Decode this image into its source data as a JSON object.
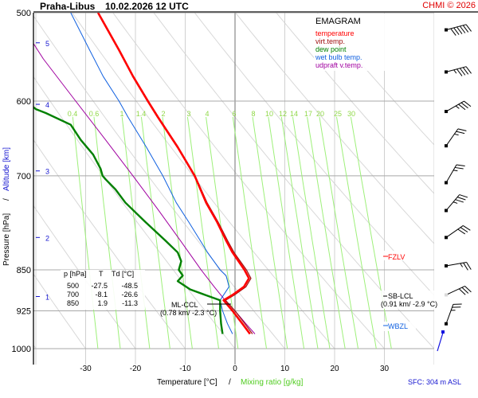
{
  "header": {
    "station": "Praha-Libus",
    "datetime": "10.02.2026 12 UTC",
    "copyright": "CHMI © 2026"
  },
  "legend": {
    "title": "EMAGRAM",
    "items": [
      {
        "label": "temperature",
        "color": "#ff0000"
      },
      {
        "label": "virt.temp.",
        "color": "#a01010"
      },
      {
        "label": "dew point",
        "color": "#008000"
      },
      {
        "label": "wet bulb temp.",
        "color": "#1060e0"
      },
      {
        "label": "udpraft v.temp.",
        "color": "#a000a0"
      }
    ]
  },
  "table": {
    "headers": [
      "p [hPa]",
      "T",
      "Td [°C]"
    ],
    "rows": [
      [
        "500",
        "-27.5",
        "-48.5"
      ],
      [
        "700",
        "-8.1",
        "-26.6"
      ],
      [
        "850",
        "1.9",
        "-11.3"
      ]
    ]
  },
  "annotations": {
    "ml_ccl": {
      "label": "ML-CCL",
      "detail": "(0.78 km/ -2.3 °C)",
      "pressure": 904
    },
    "sb_lcl": {
      "label": "SB-LCL",
      "detail": "(0.91 km/ -2.9 °C)",
      "pressure": 890
    },
    "fzlv": {
      "label": "FZLV",
      "pressure": 812,
      "color": "#ff0000"
    },
    "wbzl": {
      "label": "WBZL",
      "pressure": 947,
      "color": "#1060e0"
    },
    "surface": "SFC: 304 m ASL"
  },
  "chart_data": {
    "type": "line",
    "title": "Praha-Libus 10.02.2026 12 UTC",
    "diagram": "emagram",
    "xlabel": "Temperature [°C]",
    "xlabel2": "Mixing ratio [g/kg]",
    "ylabel": "Pressure [hPa]",
    "ylabel2": "Altitude [km]",
    "xlim": [
      -38,
      38
    ],
    "ylim": [
      1000,
      500
    ],
    "x_ticks": [
      -30,
      -20,
      -10,
      0,
      10,
      20,
      30
    ],
    "pressure_ticks": [
      500,
      600,
      700,
      850,
      925,
      1000
    ],
    "altitude_ticks": [
      {
        "km": 1,
        "p": 898
      },
      {
        "km": 2,
        "p": 795
      },
      {
        "km": 3,
        "p": 693
      },
      {
        "km": 4,
        "p": 604
      },
      {
        "km": 5,
        "p": 532
      }
    ],
    "mixing_ratio_labels": [
      "0.4",
      "0.6",
      "1",
      "1.4",
      "2",
      "3",
      "4",
      "6",
      "8",
      "10",
      "12",
      "14",
      "17",
      "20",
      "25",
      "30"
    ],
    "mixing_ratio_values": [
      0.4,
      0.6,
      1,
      1.4,
      2,
      3,
      4,
      6,
      8,
      10,
      12,
      14,
      17,
      20,
      25,
      30
    ],
    "series": [
      {
        "name": "temperature",
        "color": "#ff0000",
        "points": [
          [
            970,
            3.0
          ],
          [
            950,
            1.5
          ],
          [
            925,
            -0.5
          ],
          [
            905,
            -2.3
          ],
          [
            895,
            -0.5
          ],
          [
            880,
            1.8
          ],
          [
            865,
            2.8
          ],
          [
            850,
            1.9
          ],
          [
            820,
            -0.5
          ],
          [
            800,
            -1.8
          ],
          [
            770,
            -3.6
          ],
          [
            740,
            -5.8
          ],
          [
            700,
            -8.1
          ],
          [
            660,
            -11.5
          ],
          [
            620,
            -15.5
          ],
          [
            600,
            -17.5
          ],
          [
            570,
            -20.5
          ],
          [
            540,
            -23.3
          ],
          [
            500,
            -27.5
          ]
        ]
      },
      {
        "name": "virt.temp.",
        "color": "#a01010",
        "points": [
          [
            970,
            3.5
          ],
          [
            950,
            2.0
          ],
          [
            925,
            0.0
          ],
          [
            905,
            -1.9
          ],
          [
            895,
            -0.1
          ],
          [
            880,
            2.2
          ],
          [
            865,
            3.2
          ],
          [
            850,
            2.3
          ],
          [
            820,
            -0.2
          ],
          [
            800,
            -1.5
          ],
          [
            770,
            -3.4
          ],
          [
            740,
            -5.6
          ],
          [
            700,
            -8.0
          ],
          [
            660,
            -11.4
          ],
          [
            620,
            -15.4
          ],
          [
            600,
            -17.4
          ],
          [
            570,
            -20.4
          ],
          [
            540,
            -23.2
          ],
          [
            500,
            -27.5
          ]
        ]
      },
      {
        "name": "dew point",
        "color": "#008000",
        "points": [
          [
            970,
            -2.5
          ],
          [
            950,
            -2.8
          ],
          [
            925,
            -3.0
          ],
          [
            905,
            -3.0
          ],
          [
            895,
            -6.0
          ],
          [
            885,
            -9.0
          ],
          [
            870,
            -11.5
          ],
          [
            860,
            -10.5
          ],
          [
            850,
            -11.3
          ],
          [
            835,
            -10.8
          ],
          [
            820,
            -11.5
          ],
          [
            800,
            -14.0
          ],
          [
            770,
            -18.0
          ],
          [
            740,
            -22.0
          ],
          [
            720,
            -24.0
          ],
          [
            705,
            -26.0
          ],
          [
            700,
            -26.6
          ],
          [
            690,
            -27.0
          ],
          [
            670,
            -28.5
          ],
          [
            650,
            -31.0
          ],
          [
            630,
            -33.0
          ],
          [
            615,
            -38.0
          ],
          [
            610,
            -40.0
          ],
          [
            600,
            -42.0
          ]
        ]
      },
      {
        "name": "wet bulb temp.",
        "color": "#1060e0",
        "points": [
          [
            970,
            -0.5
          ],
          [
            950,
            -1.5
          ],
          [
            925,
            -2.5
          ],
          [
            905,
            -3.0
          ],
          [
            880,
            -1.2
          ],
          [
            860,
            -1.8
          ],
          [
            850,
            -3.0
          ],
          [
            820,
            -5.5
          ],
          [
            800,
            -7.0
          ],
          [
            770,
            -9.3
          ],
          [
            740,
            -11.8
          ],
          [
            700,
            -14.5
          ],
          [
            660,
            -17.8
          ],
          [
            620,
            -21.5
          ],
          [
            600,
            -23.3
          ],
          [
            570,
            -26.5
          ],
          [
            540,
            -29.2
          ],
          [
            500,
            -33.0
          ]
        ]
      },
      {
        "name": "udpraft v.temp.",
        "color": "#a000a0",
        "points": [
          [
            970,
            4.0
          ],
          [
            950,
            2.2
          ],
          [
            925,
            0.0
          ],
          [
            905,
            -2.0
          ],
          [
            880,
            -4.2
          ],
          [
            850,
            -6.8
          ],
          [
            800,
            -11.0
          ],
          [
            750,
            -15.5
          ],
          [
            700,
            -20.5
          ],
          [
            650,
            -26.0
          ],
          [
            600,
            -32.0
          ],
          [
            550,
            -38.5
          ],
          [
            520,
            -42.0
          ]
        ]
      }
    ],
    "wind_barbs": [
      {
        "p": 518,
        "dir": 255,
        "speed_kt": 60
      },
      {
        "p": 565,
        "dir": 255,
        "speed_kt": 45
      },
      {
        "p": 613,
        "dir": 240,
        "speed_kt": 35
      },
      {
        "p": 658,
        "dir": 215,
        "speed_kt": 25
      },
      {
        "p": 710,
        "dir": 210,
        "speed_kt": 25
      },
      {
        "p": 752,
        "dir": 220,
        "speed_kt": 35
      },
      {
        "p": 795,
        "dir": 235,
        "speed_kt": 30
      },
      {
        "p": 843,
        "dir": 260,
        "speed_kt": 25
      },
      {
        "p": 895,
        "dir": 245,
        "speed_kt": 30
      },
      {
        "p": 950,
        "dir": 200,
        "speed_kt": 25
      }
    ],
    "grid": true
  }
}
